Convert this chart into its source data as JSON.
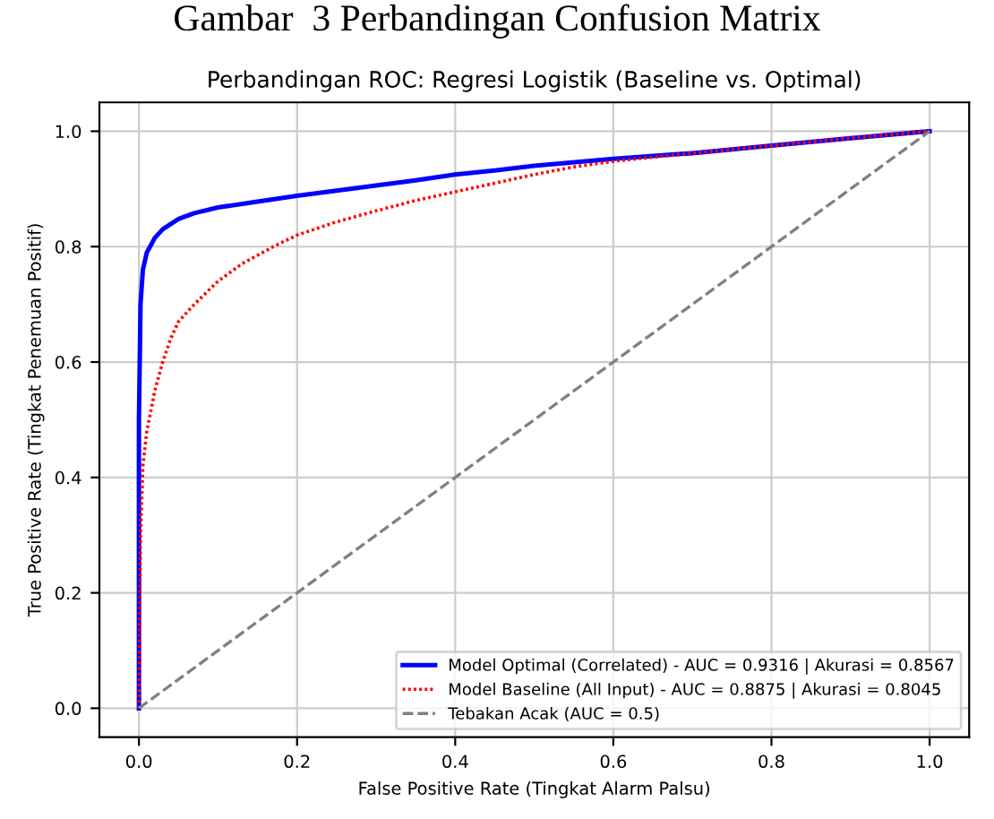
{
  "chart_data": {
    "type": "line",
    "title": "Perbandingan ROC: Regresi Logistik (Baseline vs. Optimal)",
    "xlabel": "False Positive Rate (Tingkat Alarm Palsu)",
    "ylabel": "True Positive Rate (Tingkat Penemuan Positif)",
    "annotations": [
      "Gambar  3 Perbandingan Confusion Matrix"
    ],
    "series": [
      {
        "name": "Model Optimal (Correlated) - AUC = 0.9316 | Akurasi = 0.8567",
        "color": "#0000ff",
        "line_style": "solid",
        "x": [
          0,
          0,
          0.002,
          0.005,
          0.01,
          0.02,
          0.03,
          0.05,
          0.07,
          0.1,
          0.15,
          0.2,
          0.25,
          0.3,
          0.35,
          0.4,
          0.45,
          0.5,
          0.6,
          0.7,
          0.8,
          0.9,
          1
        ],
        "values": [
          0,
          0.5,
          0.7,
          0.76,
          0.79,
          0.815,
          0.83,
          0.848,
          0.858,
          0.868,
          0.878,
          0.888,
          0.897,
          0.906,
          0.915,
          0.925,
          0.932,
          0.94,
          0.952,
          0.962,
          0.975,
          0.988,
          1
        ]
      },
      {
        "name": "Model Baseline (All Input) - AUC = 0.8875 | Akurasi = 0.8045",
        "color": "#ff0000",
        "line_style": "dotted",
        "x": [
          0,
          0.002,
          0.005,
          0.01,
          0.02,
          0.03,
          0.04,
          0.05,
          0.07,
          0.1,
          0.13,
          0.17,
          0.2,
          0.25,
          0.3,
          0.35,
          0.4,
          0.45,
          0.5,
          0.55,
          0.6,
          0.7,
          0.8,
          0.9,
          1
        ],
        "values": [
          0,
          0.3,
          0.42,
          0.48,
          0.55,
          0.6,
          0.64,
          0.67,
          0.7,
          0.74,
          0.77,
          0.8,
          0.82,
          0.843,
          0.862,
          0.88,
          0.895,
          0.91,
          0.925,
          0.938,
          0.948,
          0.962,
          0.975,
          0.988,
          1
        ]
      },
      {
        "name": "Tebakan Acak (AUC = 0.5)",
        "color": "#808080",
        "line_style": "dashed",
        "x": [
          0,
          1
        ],
        "values": [
          0,
          1
        ]
      }
    ],
    "xlim": [
      -0.05,
      1.05
    ],
    "ylim": [
      -0.05,
      1.05
    ],
    "xticks": [
      {
        "value": 0,
        "label": "0.0"
      },
      0.2,
      0.4,
      0.6,
      0.8,
      {
        "value": 1,
        "label": "1.0"
      }
    ],
    "yticks": [
      {
        "value": 0,
        "label": "0.0"
      },
      0.2,
      0.4,
      0.6,
      0.8,
      {
        "value": 1,
        "label": "1.0"
      }
    ],
    "grid": true,
    "legend": "lower right"
  }
}
